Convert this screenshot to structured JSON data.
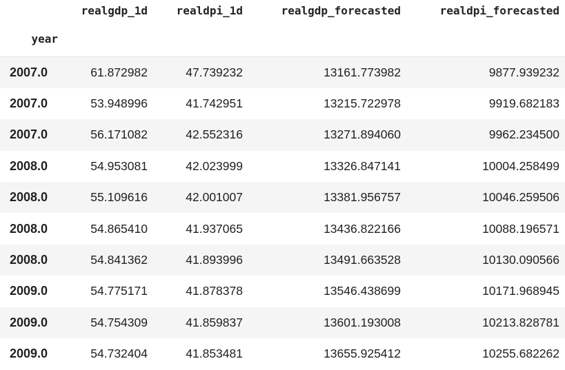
{
  "table": {
    "index_name": "year",
    "columns": [
      "realgdp_1d",
      "realdpi_1d",
      "realgdp_forecasted",
      "realdpi_forecasted"
    ],
    "rows": [
      {
        "index": "2007.0",
        "cells": [
          "61.872982",
          "47.739232",
          "13161.773982",
          "9877.939232"
        ]
      },
      {
        "index": "2007.0",
        "cells": [
          "53.948996",
          "41.742951",
          "13215.722978",
          "9919.682183"
        ]
      },
      {
        "index": "2007.0",
        "cells": [
          "56.171082",
          "42.552316",
          "13271.894060",
          "9962.234500"
        ]
      },
      {
        "index": "2008.0",
        "cells": [
          "54.953081",
          "42.023999",
          "13326.847141",
          "10004.258499"
        ]
      },
      {
        "index": "2008.0",
        "cells": [
          "55.109616",
          "42.001007",
          "13381.956757",
          "10046.259506"
        ]
      },
      {
        "index": "2008.0",
        "cells": [
          "54.865410",
          "41.937065",
          "13436.822166",
          "10088.196571"
        ]
      },
      {
        "index": "2008.0",
        "cells": [
          "54.841362",
          "41.893996",
          "13491.663528",
          "10130.090566"
        ]
      },
      {
        "index": "2009.0",
        "cells": [
          "54.775171",
          "41.878378",
          "13546.438699",
          "10171.968945"
        ]
      },
      {
        "index": "2009.0",
        "cells": [
          "54.754309",
          "41.859837",
          "13601.193008",
          "10213.828781"
        ]
      },
      {
        "index": "2009.0",
        "cells": [
          "54.732404",
          "41.853481",
          "13655.925412",
          "10255.682262"
        ]
      }
    ]
  }
}
